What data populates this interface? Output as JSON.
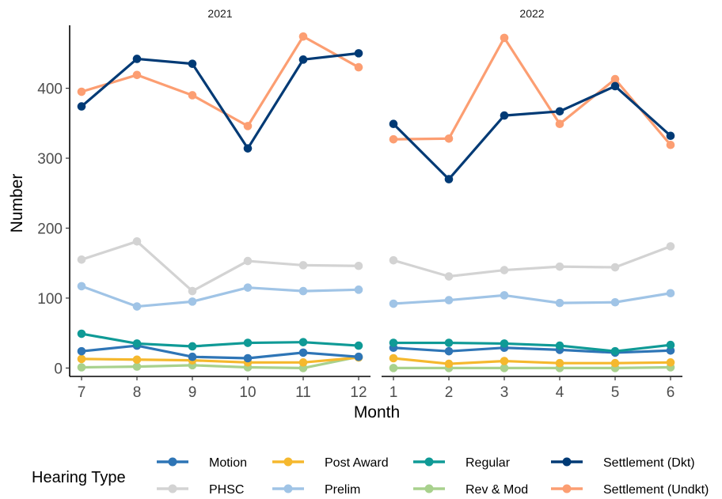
{
  "chart_data": {
    "type": "line",
    "xlabel": "Month",
    "ylabel": "Number",
    "ylim": [
      -12,
      490
    ],
    "yticks": [
      0,
      100,
      200,
      300,
      400
    ],
    "grid": false,
    "legend": {
      "title": "Hearing Type",
      "position": "bottom"
    },
    "panels": [
      {
        "title": "2021",
        "x": [
          7,
          8,
          9,
          10,
          11,
          12
        ],
        "series": [
          {
            "name": "Motion",
            "color": "#2e75b6",
            "values": [
              24,
              32,
              16,
              14,
              22,
              16
            ]
          },
          {
            "name": "Post Award",
            "color": "#f5b82e",
            "values": [
              13,
              12,
              11,
              8,
              8,
              15
            ]
          },
          {
            "name": "Regular",
            "color": "#0f9a96",
            "values": [
              49,
              35,
              31,
              36,
              37,
              32
            ]
          },
          {
            "name": "Settlement (Dkt)",
            "color": "#003a75",
            "values": [
              374,
              442,
              435,
              314,
              441,
              450
            ]
          },
          {
            "name": "PHSC",
            "color": "#d3d3d3",
            "values": [
              155,
              181,
              110,
              153,
              147,
              146
            ]
          },
          {
            "name": "Prelim",
            "color": "#a0c4e6",
            "values": [
              117,
              88,
              95,
              115,
              110,
              112
            ]
          },
          {
            "name": "Rev & Mod",
            "color": "#a8d18d",
            "values": [
              1,
              2,
              4,
              1,
              0,
              16
            ]
          },
          {
            "name": "Settlement (Undkt)",
            "color": "#fc9e72",
            "values": [
              395,
              419,
              390,
              346,
              474,
              430
            ]
          }
        ]
      },
      {
        "title": "2022",
        "x": [
          1,
          2,
          3,
          4,
          5,
          6
        ],
        "series": [
          {
            "name": "Motion",
            "color": "#2e75b6",
            "values": [
              29,
              24,
              29,
              26,
              22,
              25
            ]
          },
          {
            "name": "Post Award",
            "color": "#f5b82e",
            "values": [
              14,
              6,
              10,
              7,
              7,
              8
            ]
          },
          {
            "name": "Regular",
            "color": "#0f9a96",
            "values": [
              36,
              36,
              35,
              32,
              24,
              33
            ]
          },
          {
            "name": "Settlement (Dkt)",
            "color": "#003a75",
            "values": [
              349,
              270,
              361,
              367,
              403,
              332
            ]
          },
          {
            "name": "PHSC",
            "color": "#d3d3d3",
            "values": [
              154,
              131,
              140,
              145,
              144,
              174
            ]
          },
          {
            "name": "Prelim",
            "color": "#a0c4e6",
            "values": [
              92,
              97,
              104,
              93,
              94,
              107
            ]
          },
          {
            "name": "Rev & Mod",
            "color": "#a8d18d",
            "values": [
              0,
              0,
              0,
              0,
              0,
              1
            ]
          },
          {
            "name": "Settlement (Undkt)",
            "color": "#fc9e72",
            "values": [
              327,
              328,
              472,
              349,
              413,
              319
            ]
          }
        ]
      }
    ]
  }
}
